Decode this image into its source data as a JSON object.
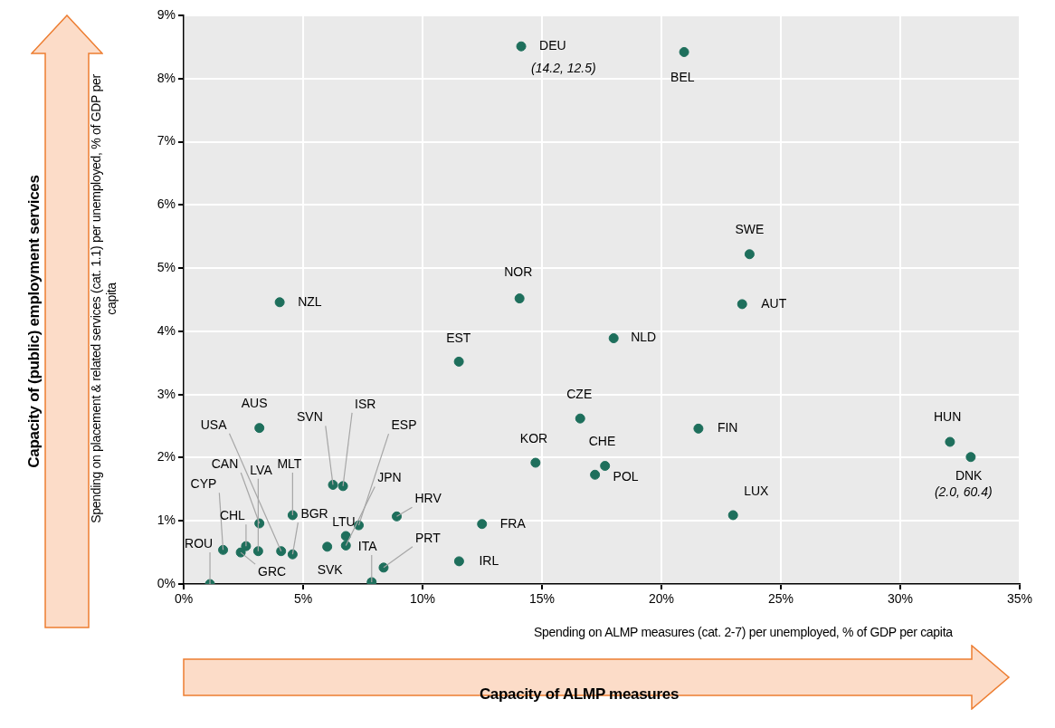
{
  "chart_data": {
    "type": "scatter",
    "xlabel": "Spending on ALMP measures (cat. 2-7) per unemployed, % of GDP per capita",
    "ylabel": "Spending on placement & related services (cat. 1.1) per unemployed, % of GDP per capita",
    "x": [
      14.13,
      20.95,
      23.69,
      23.38,
      14.06,
      4.02,
      11.52,
      18.0,
      16.6,
      14.73,
      17.64,
      17.22,
      21.55,
      23.0,
      32.08,
      32.95,
      12.49,
      11.53,
      8.92,
      8.37,
      7.87,
      6.01,
      6.79,
      6.79,
      7.33,
      6.67,
      6.25,
      4.56,
      4.56,
      4.08,
      3.17,
      3.12,
      3.17,
      1.65,
      2.61,
      2.39,
      1.1
    ],
    "values": [
      8.51,
      8.42,
      5.22,
      4.43,
      4.52,
      4.46,
      3.52,
      3.89,
      2.62,
      1.92,
      1.87,
      1.73,
      2.46,
      1.09,
      2.25,
      2.01,
      0.95,
      0.36,
      1.07,
      0.26,
      0.03,
      0.59,
      0.76,
      0.61,
      0.93,
      1.55,
      1.57,
      0.47,
      1.09,
      0.52,
      2.47,
      0.52,
      0.96,
      0.54,
      0.6,
      0.5,
      0.0
    ],
    "color": "#1e6f5c",
    "marker": "circle",
    "grid": true,
    "xlim": [
      0,
      35
    ],
    "xticks": [
      {
        "value": 0,
        "label": "0%"
      },
      {
        "value": 5,
        "label": "5%"
      },
      {
        "value": 10,
        "label": "10%"
      },
      {
        "value": 15,
        "label": "15%"
      },
      {
        "value": 20,
        "label": "20%"
      },
      {
        "value": 25,
        "label": "25%"
      },
      {
        "value": 30,
        "label": "30%"
      },
      {
        "value": 35,
        "label": "35%"
      }
    ],
    "ylim": [
      0,
      9
    ],
    "yticks": [
      {
        "value": 0,
        "label": "0%"
      },
      {
        "value": 1,
        "label": "1%"
      },
      {
        "value": 2,
        "label": "2%"
      },
      {
        "value": 3,
        "label": "3%"
      },
      {
        "value": 4,
        "label": "4%"
      },
      {
        "value": 5,
        "label": "5%"
      },
      {
        "value": 6,
        "label": "6%"
      },
      {
        "value": 7,
        "label": "7%"
      },
      {
        "value": 8,
        "label": "8%"
      },
      {
        "value": 9,
        "label": "9%"
      }
    ],
    "annotations": [
      {
        "text": "DEU",
        "x": 14.13,
        "y": 8.51
      },
      {
        "text": "(14.2, 12.5)",
        "x": 14.13,
        "y": 8.51
      },
      {
        "text": "BEL",
        "x": 20.95,
        "y": 8.42
      },
      {
        "text": "SWE",
        "x": 23.69,
        "y": 5.22
      },
      {
        "text": "AUT",
        "x": 23.38,
        "y": 4.43
      },
      {
        "text": "NOR",
        "x": 14.06,
        "y": 4.52
      },
      {
        "text": "NZL",
        "x": 4.02,
        "y": 4.46
      },
      {
        "text": "EST",
        "x": 11.52,
        "y": 3.52
      },
      {
        "text": "NLD",
        "x": 18.0,
        "y": 3.89
      },
      {
        "text": "CZE",
        "x": 16.6,
        "y": 2.62
      },
      {
        "text": "KOR",
        "x": 14.73,
        "y": 1.92
      },
      {
        "text": "CHE",
        "x": 17.64,
        "y": 1.87
      },
      {
        "text": "POL",
        "x": 17.22,
        "y": 1.73
      },
      {
        "text": "FIN",
        "x": 21.55,
        "y": 2.46
      },
      {
        "text": "LUX",
        "x": 23.0,
        "y": 1.09
      },
      {
        "text": "HUN",
        "x": 32.08,
        "y": 2.25
      },
      {
        "text": "DNK",
        "x": 32.95,
        "y": 2.01
      },
      {
        "text": "(2.0, 60.4)",
        "x": 32.95,
        "y": 2.01
      },
      {
        "text": "FRA",
        "x": 12.49,
        "y": 0.95
      },
      {
        "text": "IRL",
        "x": 11.53,
        "y": 0.36
      },
      {
        "text": "HRV",
        "x": 8.92,
        "y": 1.07
      },
      {
        "text": "PRT",
        "x": 8.37,
        "y": 0.26
      },
      {
        "text": "ITA",
        "x": 7.87,
        "y": 0.03
      },
      {
        "text": "SVK",
        "x": 6.01,
        "y": 0.59
      },
      {
        "text": "LTU",
        "x": 6.79,
        "y": 0.76
      },
      {
        "text": "JPN",
        "x": 6.79,
        "y": 0.61
      },
      {
        "text": "ESP",
        "x": 7.33,
        "y": 0.93
      },
      {
        "text": "ISR",
        "x": 6.67,
        "y": 1.55
      },
      {
        "text": "SVN",
        "x": 6.25,
        "y": 1.57
      },
      {
        "text": "BGR",
        "x": 4.56,
        "y": 0.47
      },
      {
        "text": "MLT",
        "x": 4.56,
        "y": 1.09
      },
      {
        "text": "USA",
        "x": 4.08,
        "y": 0.52
      },
      {
        "text": "AUS",
        "x": 3.17,
        "y": 2.47
      },
      {
        "text": "LVA",
        "x": 3.12,
        "y": 0.52
      },
      {
        "text": "CAN",
        "x": 3.17,
        "y": 0.96
      },
      {
        "text": "CYP",
        "x": 1.65,
        "y": 0.54
      },
      {
        "text": "CHL",
        "x": 2.61,
        "y": 0.6
      },
      {
        "text": "GRC",
        "x": 2.39,
        "y": 0.5
      },
      {
        "text": "ROU",
        "x": 1.1,
        "y": 0.0
      },
      "Capacity of ALMP measures",
      "Capacity of (public) employment services"
    ]
  }
}
